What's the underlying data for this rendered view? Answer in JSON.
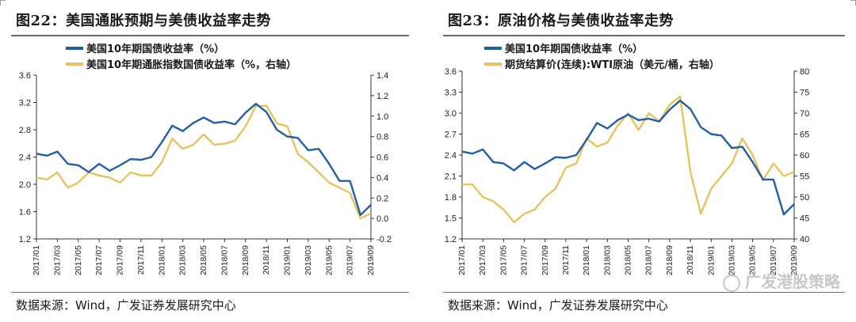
{
  "charts": {
    "left": {
      "title": "图22：美国通胀预期与美债收益率走势",
      "source": "数据来源：Wind，广发证券发展研究中心"
    },
    "right": {
      "title": "图23：原油价格与美债收益率走势",
      "source": "数据来源：Wind，广发证券发展研究中心"
    }
  },
  "watermark": "广发港股策略",
  "chart_data": [
    {
      "type": "line",
      "title": "图22：美国通胀预期与美债收益率走势",
      "x": [
        "2017/01",
        "2017/02",
        "2017/03",
        "2017/04",
        "2017/05",
        "2017/06",
        "2017/07",
        "2017/08",
        "2017/09",
        "2017/10",
        "2017/11",
        "2017/12",
        "2018/01",
        "2018/02",
        "2018/03",
        "2018/04",
        "2018/05",
        "2018/06",
        "2018/07",
        "2018/08",
        "2018/09",
        "2018/10",
        "2018/11",
        "2018/12",
        "2019/01",
        "2019/02",
        "2019/03",
        "2019/04",
        "2019/05",
        "2019/06",
        "2019/07",
        "2019/08",
        "2019/09"
      ],
      "x_tick_labels": [
        "2017/01",
        "2017/03",
        "2017/05",
        "2017/07",
        "2017/09",
        "2017/11",
        "2018/01",
        "2018/03",
        "2018/05",
        "2018/07",
        "2018/09",
        "2018/11",
        "2019/01",
        "2019/03",
        "2019/05",
        "2019/07",
        "2019/09"
      ],
      "y_left": {
        "range": [
          1.2,
          3.6
        ],
        "ticks": [
          "1.2",
          "1.6",
          "2.0",
          "2.4",
          "2.8",
          "3.2",
          "3.6"
        ]
      },
      "y_right": {
        "range": [
          -0.2,
          1.4
        ],
        "ticks": [
          "-0.2",
          "0.0",
          "0.2",
          "0.4",
          "0.6",
          "0.8",
          "1.0",
          "1.2",
          "1.4"
        ]
      },
      "legend_position": "top-left",
      "series": [
        {
          "name": "美国10年期国债收益率（%）",
          "axis": "left",
          "color": "#1f5fa8",
          "values": [
            2.45,
            2.42,
            2.48,
            2.3,
            2.28,
            2.18,
            2.3,
            2.2,
            2.28,
            2.37,
            2.36,
            2.4,
            2.62,
            2.86,
            2.78,
            2.9,
            2.98,
            2.9,
            2.92,
            2.88,
            3.05,
            3.18,
            3.06,
            2.8,
            2.7,
            2.68,
            2.5,
            2.52,
            2.3,
            2.05,
            2.05,
            1.55,
            1.7
          ]
        },
        {
          "name": "美国10年期通胀指数国债收益率（%，右轴）",
          "axis": "right",
          "color": "#e8c25c",
          "values": [
            0.4,
            0.38,
            0.45,
            0.3,
            0.35,
            0.45,
            0.42,
            0.4,
            0.35,
            0.45,
            0.42,
            0.42,
            0.55,
            0.78,
            0.68,
            0.72,
            0.82,
            0.72,
            0.73,
            0.76,
            0.9,
            1.1,
            1.1,
            0.93,
            0.9,
            0.63,
            0.55,
            0.45,
            0.35,
            0.3,
            0.25,
            0.0,
            0.05
          ]
        }
      ]
    },
    {
      "type": "line",
      "title": "图23：原油价格与美债收益率走势",
      "x": [
        "2017/01",
        "2017/02",
        "2017/03",
        "2017/04",
        "2017/05",
        "2017/06",
        "2017/07",
        "2017/08",
        "2017/09",
        "2017/10",
        "2017/11",
        "2017/12",
        "2018/01",
        "2018/02",
        "2018/03",
        "2018/04",
        "2018/05",
        "2018/06",
        "2018/07",
        "2018/08",
        "2018/09",
        "2018/10",
        "2018/11",
        "2018/12",
        "2019/01",
        "2019/02",
        "2019/03",
        "2019/04",
        "2019/05",
        "2019/06",
        "2019/07",
        "2019/08",
        "2019/09"
      ],
      "x_tick_labels": [
        "2017/01",
        "2017/03",
        "2017/05",
        "2017/07",
        "2017/09",
        "2017/11",
        "2018/01",
        "2018/03",
        "2018/05",
        "2018/07",
        "2018/09",
        "2018/11",
        "2019/01",
        "2019/03",
        "2019/05",
        "2019/07",
        "2019/09"
      ],
      "y_left": {
        "range": [
          1.2,
          3.6
        ],
        "ticks": [
          "1.2",
          "1.5",
          "1.8",
          "2.1",
          "2.4",
          "2.7",
          "3.0",
          "3.3",
          "3.6"
        ]
      },
      "y_right": {
        "range": [
          40,
          80
        ],
        "ticks": [
          "40",
          "45",
          "50",
          "55",
          "60",
          "65",
          "70",
          "75",
          "80"
        ]
      },
      "legend_position": "top-left",
      "series": [
        {
          "name": "美国10年期国债收益率（%）",
          "axis": "left",
          "color": "#1f5fa8",
          "values": [
            2.45,
            2.42,
            2.48,
            2.3,
            2.28,
            2.18,
            2.3,
            2.2,
            2.28,
            2.37,
            2.36,
            2.4,
            2.62,
            2.86,
            2.78,
            2.9,
            2.98,
            2.9,
            2.92,
            2.88,
            3.05,
            3.18,
            3.06,
            2.8,
            2.7,
            2.68,
            2.5,
            2.52,
            2.3,
            2.05,
            2.05,
            1.55,
            1.7
          ]
        },
        {
          "name": "期货结算价(连续):WTI原油（美元/桶，右轴）",
          "axis": "right",
          "color": "#e8c25c",
          "values": [
            53,
            53,
            50,
            49,
            47,
            44,
            46,
            47,
            50,
            52,
            57,
            58,
            64,
            62,
            63,
            67,
            70,
            66,
            70,
            68,
            72,
            74,
            56,
            46,
            52,
            55,
            58,
            64,
            60,
            54,
            58,
            55,
            56
          ]
        }
      ]
    }
  ]
}
